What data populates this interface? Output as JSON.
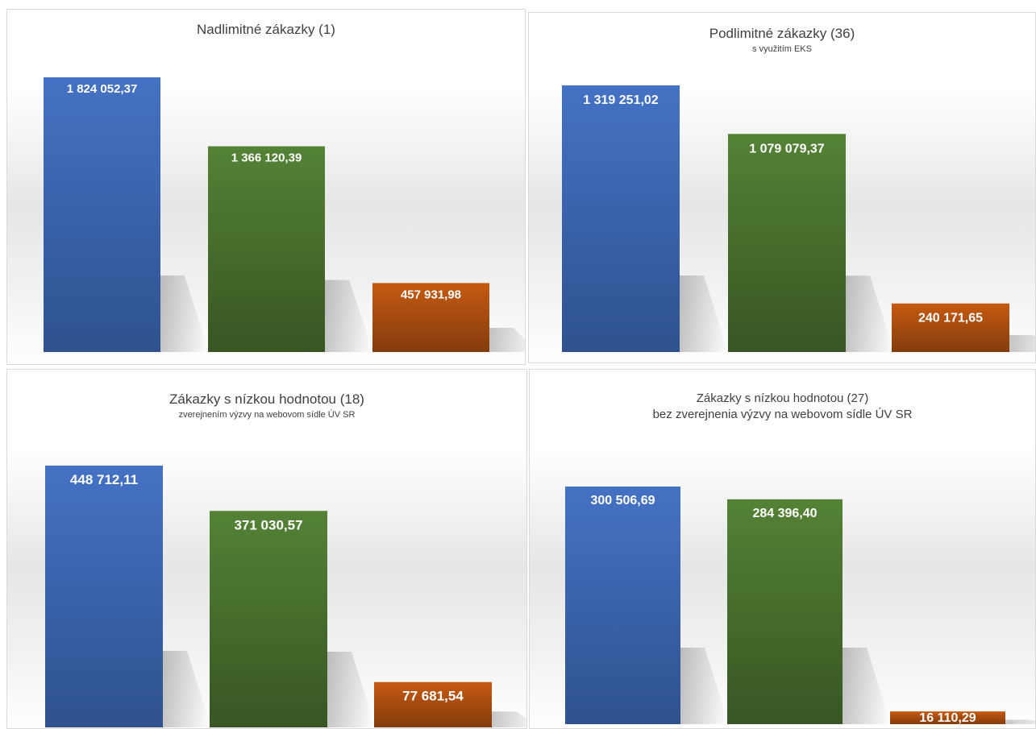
{
  "colors": {
    "series": [
      "#4472C4",
      "#548235",
      "#C55A11"
    ],
    "label": "#ffffff",
    "title": "#404040"
  },
  "chart_data": [
    {
      "type": "bar",
      "title": "Nadlimitné zákazky (1)",
      "subtitle": "",
      "values": [
        1824052.37,
        1366120.39,
        457931.98
      ],
      "labels": [
        "1 824 052,37",
        "1 366 120,39",
        "457 931,98"
      ],
      "ylim": [
        0,
        2000000
      ],
      "grid": false,
      "legend": "none"
    },
    {
      "type": "bar",
      "title": "Podlimitné zákazky (36)",
      "subtitle": "s využitím EKS",
      "values": [
        1319251.02,
        1079079.37,
        240171.65
      ],
      "labels": [
        "1 319 251,02",
        "1 079 079,37",
        "240 171,65"
      ],
      "ylim": [
        0,
        1500000
      ],
      "grid": false,
      "legend": "none"
    },
    {
      "type": "bar",
      "title": "Zákazky s nízkou hodnotou (18)",
      "subtitle": "zverejnením výzvy na webovom sídle ÚV SR",
      "values": [
        448712.11,
        371030.57,
        77681.54
      ],
      "labels": [
        "448 712,11",
        "371 030,57",
        "77 681,54"
      ],
      "ylim": [
        0,
        500000
      ],
      "grid": false,
      "legend": "none"
    },
    {
      "type": "bar",
      "title": "Zákazky s nízkou hodnotou (27)",
      "subtitle": "bez zverejnenia výzvy na webovom sídle ÚV SR",
      "values": [
        300506.69,
        284396.4,
        16110.29
      ],
      "labels": [
        "300 506,69",
        "284 396,40",
        "16 110,29"
      ],
      "ylim": [
        0,
        350000
      ],
      "grid": false,
      "legend": "none"
    }
  ]
}
